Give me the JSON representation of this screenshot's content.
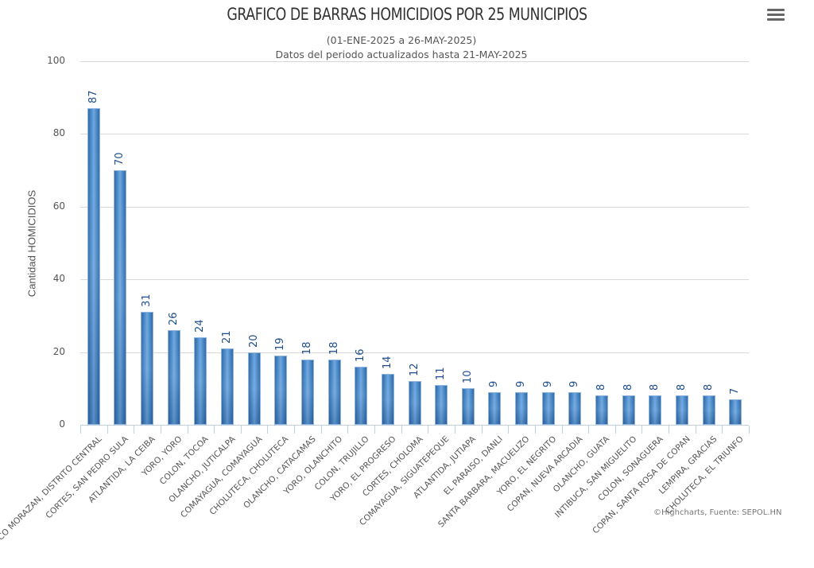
{
  "header": {
    "title": "GRAFICO DE BARRAS HOMICIDIOS POR 25 MUNICIPIOS",
    "subtitle_line1": "(01-ENE-2025 a 26-MAY-2025)",
    "subtitle_line2": "Datos del periodo actualizados hasta 21-MAY-2025",
    "menu_icon": "hamburger-menu-icon"
  },
  "credits": "©Highcharts, Fuente: SEPOL.HN",
  "colors": {
    "bar": "#4a86c8",
    "value_label": "#1f4e8c",
    "grid": "#d8d8d8"
  },
  "chart_data": {
    "type": "bar",
    "title": "GRAFICO DE BARRAS HOMICIDIOS POR 25 MUNICIPIOS",
    "subtitle": "(01-ENE-2025 a 26-MAY-2025) Datos del periodo actualizados hasta 21-MAY-2025",
    "xlabel": "",
    "ylabel": "Cantidad HOMICIDIOS",
    "ylim": [
      0,
      100
    ],
    "yticks": [
      0,
      20,
      40,
      60,
      80,
      100
    ],
    "grid": true,
    "legend": "none",
    "data_labels": true,
    "categories": [
      "FRANCISCO MORAZAN, DISTRITO CENTRAL",
      "CORTES, SAN PEDRO SULA",
      "ATLANTIDA, LA CEIBA",
      "YORO, YORO",
      "COLON, TOCOA",
      "OLANCHO, JUTICALPA",
      "COMAYAGUA, COMAYAGUA",
      "CHOLUTECA, CHOLUTECA",
      "OLANCHO, CATACAMAS",
      "YORO, OLANCHITO",
      "COLON, TRUJILLO",
      "YORO, EL PROGRESO",
      "CORTES, CHOLOMA",
      "COMAYAGUA, SIGUATEPEQUE",
      "ATLANTIDA, JUTIAPA",
      "EL PARAISO, DANLI",
      "SANTA BARBARA, MACUELIZO",
      "YORO, EL NEGRITO",
      "COPAN, NUEVA ARCADIA",
      "OLANCHO, GUATA",
      "INTIBUCA, SAN MIGUELITO",
      "COLON, SONAGUERA",
      "COPAN, SANTA ROSA DE COPAN",
      "LEMPIRA, GRACIAS",
      "CHOLUTECA, EL TRIUNFO"
    ],
    "values": [
      87,
      70,
      31,
      26,
      24,
      21,
      20,
      19,
      18,
      18,
      16,
      14,
      12,
      11,
      10,
      9,
      9,
      9,
      9,
      8,
      8,
      8,
      8,
      8,
      7
    ]
  }
}
